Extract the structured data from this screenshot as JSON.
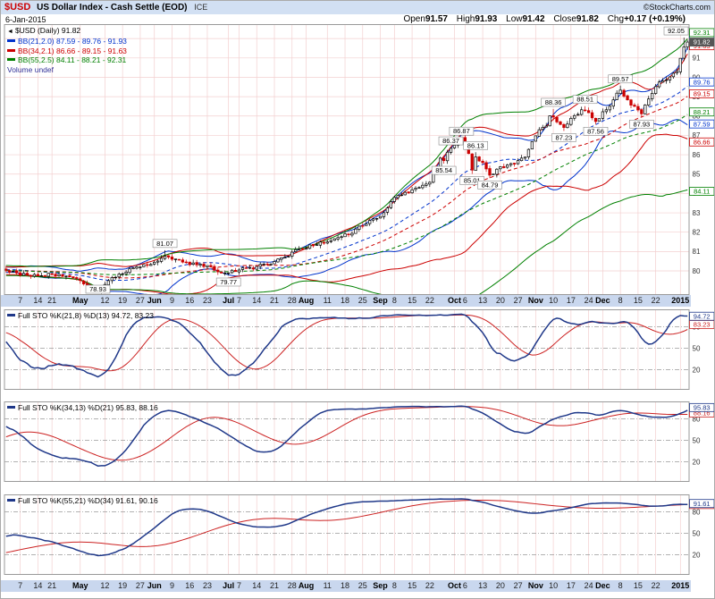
{
  "header": {
    "symbol": "$USD",
    "title": "US Dollar Index - Cash Settle (EOD)",
    "exchange": "ICE",
    "copyright": "©StockCharts.com",
    "date": "6-Jan-2015",
    "quote": {
      "open_label": "Open",
      "open": "91.57",
      "high_label": "High",
      "high": "91.93",
      "low_label": "Low",
      "low": "91.42",
      "close_label": "Close",
      "close": "91.82",
      "chg_label": "Chg",
      "chg": "+0.17 (+0.19%)"
    }
  },
  "icons": {
    "legend_marker": "◄"
  },
  "main_legend": {
    "series": "$USD (Daily) 91.82",
    "bb21": "BB(21,2.0) 87.59 - 89.76 - 91.93",
    "bb34": "BB(34,2.1) 86.66 - 89.15 - 91.63",
    "bb55": "BB(55,2.5) 84.11 - 88.21 - 92.31",
    "volume": "Volume undef"
  },
  "colors": {
    "header_bg": "#d2e0f3",
    "strip_bg": "#c9d7ee",
    "grid": "#f3cfcf",
    "frame": "#999999",
    "up": "#000000",
    "down": "#cc0000",
    "bb21": "#0033cc",
    "bb34": "#cc0000",
    "bb55": "#008000",
    "stoch_k": "#1f3889",
    "stoch_d": "#cc2222",
    "volume": "#333399",
    "close_box": "#555555",
    "symbol": "#cc0000"
  },
  "chart_data": [
    {
      "type": "candlestick",
      "name": "$USD Daily price with Bollinger Bands",
      "days_visible": 193,
      "ylim": [
        78.8,
        92.7
      ],
      "y_ticks": [
        80,
        81,
        82,
        83,
        84,
        85,
        86,
        87,
        88,
        89,
        90,
        91,
        92
      ],
      "x_ticks": [
        [
          4,
          "7"
        ],
        [
          9,
          "14"
        ],
        [
          13,
          "21"
        ],
        [
          21,
          "May"
        ],
        [
          28,
          "12"
        ],
        [
          33,
          "19"
        ],
        [
          38,
          "27"
        ],
        [
          42,
          "Jun"
        ],
        [
          47,
          "9"
        ],
        [
          52,
          "16"
        ],
        [
          57,
          "23"
        ],
        [
          63,
          "Jul"
        ],
        [
          66,
          "7"
        ],
        [
          71,
          "14"
        ],
        [
          76,
          "21"
        ],
        [
          81,
          "28"
        ],
        [
          85,
          "Aug"
        ],
        [
          91,
          "11"
        ],
        [
          96,
          "18"
        ],
        [
          101,
          "25"
        ],
        [
          106,
          "Sep"
        ],
        [
          110,
          "8"
        ],
        [
          115,
          "15"
        ],
        [
          120,
          "22"
        ],
        [
          127,
          "Oct"
        ],
        [
          130,
          "6"
        ],
        [
          135,
          "13"
        ],
        [
          140,
          "20"
        ],
        [
          145,
          "27"
        ],
        [
          150,
          "Nov"
        ],
        [
          155,
          "10"
        ],
        [
          160,
          "17"
        ],
        [
          165,
          "24"
        ],
        [
          169,
          "Dec"
        ],
        [
          174,
          "8"
        ],
        [
          179,
          "15"
        ],
        [
          184,
          "22"
        ],
        [
          191,
          "2015"
        ]
      ],
      "noise_seed": 11,
      "noise_amp": 0.2,
      "price_anchors": [
        [
          -120,
          80.3
        ],
        [
          -100,
          80.8
        ],
        [
          -85,
          81.2
        ],
        [
          -70,
          80.5
        ],
        [
          -55,
          80.2
        ],
        [
          -40,
          80.0
        ],
        [
          -25,
          79.9
        ],
        [
          -10,
          80.2
        ],
        [
          0,
          80.1
        ],
        [
          4,
          79.85
        ],
        [
          9,
          79.75
        ],
        [
          13,
          79.9
        ],
        [
          17,
          79.8
        ],
        [
          21,
          79.5
        ],
        [
          24,
          79.15
        ],
        [
          26,
          79.0
        ],
        [
          29,
          79.5
        ],
        [
          33,
          79.95
        ],
        [
          38,
          80.25
        ],
        [
          42,
          80.5
        ],
        [
          45,
          80.85
        ],
        [
          47,
          80.55
        ],
        [
          52,
          80.4
        ],
        [
          57,
          80.2
        ],
        [
          61,
          79.95
        ],
        [
          63,
          79.85
        ],
        [
          66,
          80.05
        ],
        [
          71,
          80.15
        ],
        [
          76,
          80.5
        ],
        [
          81,
          80.95
        ],
        [
          85,
          81.3
        ],
        [
          90,
          81.45
        ],
        [
          95,
          81.7
        ],
        [
          100,
          82.2
        ],
        [
          105,
          82.7
        ],
        [
          108,
          83.2
        ],
        [
          110,
          83.75
        ],
        [
          115,
          84.15
        ],
        [
          118,
          84.45
        ],
        [
          120,
          84.65
        ],
        [
          122,
          85.3
        ],
        [
          123,
          85.9
        ],
        [
          124,
          85.7
        ],
        [
          125,
          86.05
        ],
        [
          126,
          86.3
        ],
        [
          129,
          86.8
        ],
        [
          131,
          86.1
        ],
        [
          132,
          85.3
        ],
        [
          133,
          85.95
        ],
        [
          135,
          85.55
        ],
        [
          137,
          85.0
        ],
        [
          140,
          85.35
        ],
        [
          144,
          85.5
        ],
        [
          147,
          85.85
        ],
        [
          149,
          86.8
        ],
        [
          151,
          87.3
        ],
        [
          153,
          87.55
        ],
        [
          154,
          87.95
        ],
        [
          156,
          87.7
        ],
        [
          158,
          87.45
        ],
        [
          160,
          87.8
        ],
        [
          163,
          88.25
        ],
        [
          164,
          88.35
        ],
        [
          166,
          87.95
        ],
        [
          167,
          87.7
        ],
        [
          169,
          88.15
        ],
        [
          171,
          88.5
        ],
        [
          174,
          89.35
        ],
        [
          176,
          88.85
        ],
        [
          179,
          88.3
        ],
        [
          180,
          88.2
        ],
        [
          182,
          88.95
        ],
        [
          184,
          89.45
        ],
        [
          186,
          89.85
        ],
        [
          188,
          90.1
        ],
        [
          190,
          90.25
        ],
        [
          191,
          91.0
        ],
        [
          192,
          91.55
        ],
        [
          193,
          91.82
        ]
      ],
      "overrides": {
        "26": {
          "low": 78.93
        },
        "45": {
          "high": 81.07
        },
        "63": {
          "low": 79.77
        },
        "124": {
          "low": 85.54
        },
        "126": {
          "high": 86.37
        },
        "129": {
          "high": 86.87
        },
        "132": {
          "low": 85.01
        },
        "133": {
          "high": 86.13
        },
        "137": {
          "low": 84.79
        },
        "155": {
          "high": 88.36
        },
        "158": {
          "low": 87.23
        },
        "164": {
          "high": 88.51
        },
        "167": {
          "low": 87.56
        },
        "174": {
          "high": 89.57
        },
        "180": {
          "low": 87.93
        },
        "192": {
          "high": 92.05
        },
        "193": {
          "open": 91.57,
          "high": 91.93,
          "low": 91.42,
          "close": 91.82
        }
      },
      "bands": [
        {
          "label": "BB(21,2.0)",
          "period": 21,
          "mult": 2.0,
          "color_key": "bb21",
          "last": [
            87.59,
            89.76,
            91.93
          ]
        },
        {
          "label": "BB(34,2.1)",
          "period": 34,
          "mult": 2.1,
          "color_key": "bb34",
          "last": [
            86.66,
            89.15,
            91.63
          ]
        },
        {
          "label": "BB(55,2.5)",
          "period": 55,
          "mult": 2.5,
          "color_key": "bb55",
          "last": [
            84.11,
            88.21,
            92.31
          ]
        }
      ],
      "axis_boxes": [
        {
          "text": "91.93",
          "price": 91.93,
          "color": "#0033cc"
        },
        {
          "text": "91.63",
          "price": 91.63,
          "color": "#cc0000"
        },
        {
          "text": "92.31",
          "price": 92.31,
          "color": "#008000"
        },
        {
          "text": "89.76",
          "price": 89.76,
          "color": "#0033cc"
        },
        {
          "text": "89.15",
          "price": 89.15,
          "color": "#cc0000"
        },
        {
          "text": "88.21",
          "price": 88.21,
          "color": "#008000"
        },
        {
          "text": "87.59",
          "price": 87.59,
          "color": "#0033cc"
        },
        {
          "text": "86.66",
          "price": 86.66,
          "color": "#cc0000"
        },
        {
          "text": "84.11",
          "price": 84.11,
          "color": "#008000"
        },
        {
          "text": "91.82",
          "price": 91.82,
          "color": "#555555",
          "filled": true
        }
      ],
      "annotations": [
        {
          "day": 26,
          "price": 78.93,
          "side": "below",
          "text": "78.93"
        },
        {
          "day": 45,
          "price": 81.07,
          "side": "above",
          "text": "81.07"
        },
        {
          "day": 63,
          "price": 79.77,
          "side": "below",
          "text": "79.77"
        },
        {
          "day": 124,
          "price": 85.54,
          "side": "below",
          "text": "85.54"
        },
        {
          "day": 126,
          "price": 86.37,
          "side": "above",
          "text": "86.37"
        },
        {
          "day": 129,
          "price": 86.87,
          "side": "above",
          "text": "86.87"
        },
        {
          "day": 132,
          "price": 85.01,
          "side": "below",
          "text": "85.01"
        },
        {
          "day": 133,
          "price": 86.13,
          "side": "above",
          "text": "86.13"
        },
        {
          "day": 137,
          "price": 84.79,
          "side": "below",
          "text": "84.79"
        },
        {
          "day": 155,
          "price": 88.36,
          "side": "above",
          "text": "88.36"
        },
        {
          "day": 158,
          "price": 87.23,
          "side": "below",
          "text": "87.23"
        },
        {
          "day": 164,
          "price": 88.51,
          "side": "above",
          "text": "88.51"
        },
        {
          "day": 167,
          "price": 87.56,
          "side": "below",
          "text": "87.56"
        },
        {
          "day": 174,
          "price": 89.57,
          "side": "above",
          "text": "89.57"
        },
        {
          "day": 180,
          "price": 87.93,
          "side": "below",
          "text": "87.93"
        },
        {
          "day": 192,
          "price": 92.05,
          "side": "above",
          "text": "92.05"
        }
      ]
    },
    {
      "type": "line",
      "name": "Full Stochastics (21,8) with %D(13)",
      "legend": "Full STO %K(21,8) %D(13) 94.72, 83.23",
      "k": {
        "lookback": 21,
        "smooth": 8,
        "color": "#1f3889",
        "last": 94.72
      },
      "d": {
        "period": 13,
        "color": "#cc2222",
        "last": 83.23
      },
      "ylim": [
        0,
        100
      ],
      "ref_lines": [
        80,
        50,
        20
      ],
      "axis_boxes": [
        {
          "text": "83.23",
          "value": 83.23,
          "color": "#cc2222"
        },
        {
          "text": "94.72",
          "value": 94.72,
          "color": "#1f3889"
        }
      ]
    },
    {
      "type": "line",
      "name": "Full Stochastics (34,13) with %D(21)",
      "legend": "Full STO %K(34,13) %D(21) 95.83, 88.16",
      "k": {
        "lookback": 34,
        "smooth": 13,
        "color": "#1f3889",
        "last": 95.83
      },
      "d": {
        "period": 21,
        "color": "#cc2222",
        "last": 88.16
      },
      "ylim": [
        0,
        100
      ],
      "ref_lines": [
        80,
        50,
        20
      ],
      "axis_boxes": [
        {
          "text": "88.16",
          "value": 88.16,
          "color": "#cc2222"
        },
        {
          "text": "95.83",
          "value": 95.83,
          "color": "#1f3889"
        }
      ]
    },
    {
      "type": "line",
      "name": "Full Stochastics (55,21) with %D(34)",
      "legend": "Full STO %K(55,21) %D(34) 91.61, 90.16",
      "k": {
        "lookback": 55,
        "smooth": 21,
        "color": "#1f3889",
        "last": 91.61
      },
      "d": {
        "period": 34,
        "color": "#cc2222",
        "last": 90.16
      },
      "ylim": [
        0,
        100
      ],
      "ref_lines": [
        80,
        50,
        20
      ],
      "axis_boxes": [
        {
          "text": "90.16",
          "value": 90.16,
          "color": "#cc2222"
        },
        {
          "text": "91.61",
          "value": 91.61,
          "color": "#1f3889"
        }
      ]
    }
  ]
}
